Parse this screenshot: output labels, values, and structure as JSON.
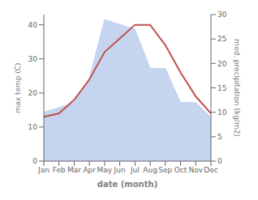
{
  "chart_data": {
    "type": "line",
    "categories": [
      "Jan",
      "Feb",
      "Mar",
      "Apr",
      "May",
      "Jun",
      "Jul",
      "Aug",
      "Sep",
      "Oct",
      "Nov",
      "Dec"
    ],
    "xlabel": "date (month)",
    "ylabel": "max temp (C)",
    "y2label": "med. precipitation (kg/m2)",
    "series": [
      {
        "type": "area",
        "axis": "y2",
        "color": "#c5d5f0",
        "values": [
          10,
          11,
          12,
          17,
          29,
          28,
          27,
          19,
          19,
          12,
          12,
          9
        ]
      },
      {
        "type": "line",
        "color": "#c0504d",
        "values": [
          13,
          14,
          18,
          24,
          32,
          36,
          40,
          40,
          34,
          26,
          19,
          14
        ]
      }
    ],
    "ylim": [
      0,
      43
    ],
    "yticks": [
      0,
      10,
      20,
      30,
      40
    ],
    "y2lim": [
      0,
      30
    ],
    "y2ticks": [
      0,
      5,
      10,
      15,
      20,
      25,
      30
    ],
    "grid": false
  }
}
